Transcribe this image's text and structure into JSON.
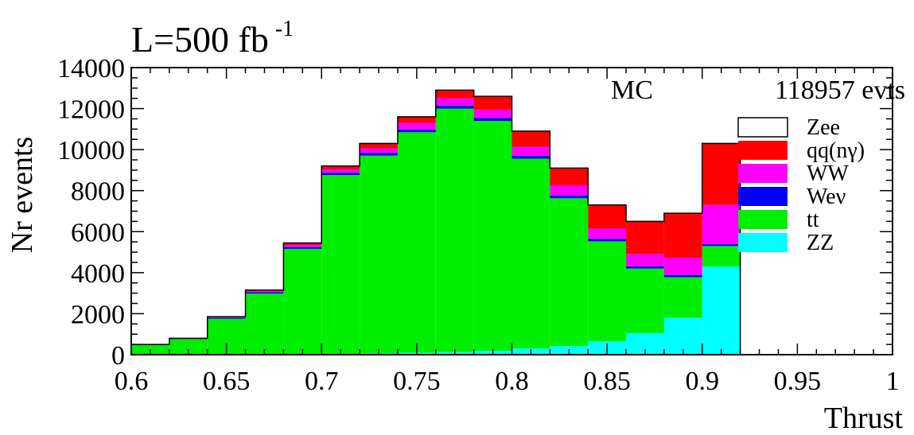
{
  "chart_data": {
    "type": "bar",
    "stacked": true,
    "histogram": true,
    "title": "L=500 fb",
    "title_superscript": "-1",
    "xlabel": "Thrust",
    "ylabel": "Nr events",
    "xlim": [
      0.6,
      1.0
    ],
    "ylim": [
      0,
      14000
    ],
    "x_ticks": [
      "0.6",
      "0.65",
      "0.7",
      "0.75",
      "0.8",
      "0.85",
      "0.9",
      "0.95",
      "1"
    ],
    "y_ticks": [
      "0",
      "2000",
      "4000",
      "6000",
      "8000",
      "10000",
      "12000",
      "14000"
    ],
    "annotations": {
      "mc_label": "MC",
      "events_label": "118957 evts"
    },
    "bin_edges": [
      0.6,
      0.62,
      0.64,
      0.66,
      0.68,
      0.7,
      0.72,
      0.74,
      0.76,
      0.78,
      0.8,
      0.82,
      0.84,
      0.86,
      0.88,
      0.9,
      0.92
    ],
    "series": [
      {
        "name": "ZZ",
        "color": "#00ffff",
        "values": [
          0,
          0,
          0,
          20,
          30,
          40,
          60,
          90,
          130,
          190,
          300,
          420,
          650,
          1050,
          1800,
          4300
        ]
      },
      {
        "name": "tt",
        "color": "#00ee00",
        "values": [
          470,
          760,
          1750,
          2960,
          5130,
          8720,
          9650,
          10760,
          11870,
          11210,
          9260,
          7210,
          4880,
          3150,
          1980,
          1000
        ]
      },
      {
        "name": "Weν",
        "color": "#0000ff",
        "values": [
          30,
          40,
          50,
          70,
          90,
          110,
          120,
          130,
          150,
          150,
          140,
          130,
          120,
          110,
          100,
          100
        ]
      },
      {
        "name": "WW",
        "color": "#ff00ff",
        "values": [
          0,
          0,
          20,
          50,
          100,
          160,
          230,
          320,
          360,
          400,
          440,
          500,
          500,
          600,
          850,
          1900
        ]
      },
      {
        "name": "qq(nγ)",
        "color": "#ff0000",
        "values": [
          0,
          0,
          30,
          50,
          100,
          170,
          240,
          300,
          390,
          650,
          760,
          840,
          1150,
          1590,
          2170,
          3000
        ]
      },
      {
        "name": "Zee",
        "color": "#ffffff",
        "values": [
          0,
          0,
          0,
          0,
          0,
          0,
          0,
          0,
          0,
          0,
          0,
          0,
          0,
          0,
          0,
          0
        ]
      }
    ],
    "legend_position": "right",
    "grid": false
  }
}
